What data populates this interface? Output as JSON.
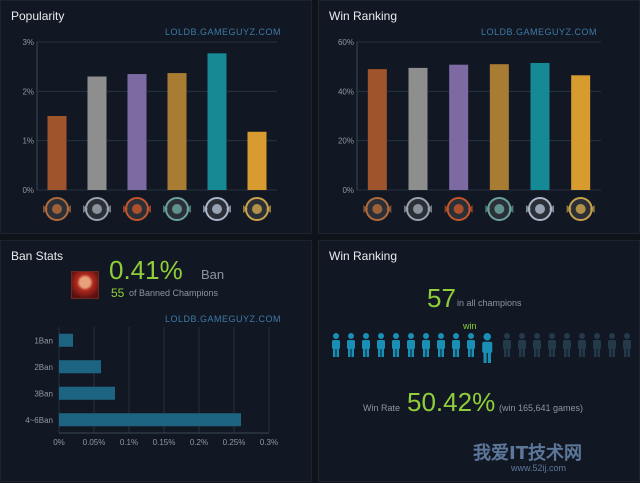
{
  "colors": {
    "bronze": "#a0542c",
    "silver": "#8e8e8e",
    "gold_purple": "#7d6aa3",
    "gold": "#a87c33",
    "platinum": "#158a94",
    "diamond": "#d89b2f",
    "hbar": "#1d6483",
    "green": "#8fce3a",
    "person_active": "#1a8fb5",
    "person_inactive": "#243a4a"
  },
  "popularity": {
    "title": "Popularity",
    "watermark": "LOLDB.GAMEGUYZ.COM"
  },
  "win_ranking_chart": {
    "title": "Win Ranking",
    "watermark": "LOLDB.GAMEGUYZ.COM"
  },
  "tier_badges": [
    "bronze-badge-icon",
    "silver-badge-icon",
    "gold-badge-icon",
    "platinum-badge-icon",
    "diamond-badge-icon",
    "challenger-badge-icon"
  ],
  "ban_stats": {
    "title": "Ban Stats",
    "ban_rate": "0.41%",
    "ban_label": "Ban",
    "banned_rank": "55",
    "banned_text": "of Banned Champions",
    "watermark": "LOLDB.GAMEGUYZ.COM"
  },
  "win_summary": {
    "title": "Win Ranking",
    "rank": "57",
    "rank_text": "in all champions",
    "win_word": "win",
    "win_rate_label": "Win Rate",
    "win_rate": "50.42%",
    "games_text": "(win 165,641 games)"
  },
  "people": {
    "total": 20,
    "highlight_index": 10,
    "active_count": 10
  },
  "footer_watermark": {
    "cn": "我爱IT技术网",
    "url": "www.52ij.com"
  },
  "chart_data": [
    {
      "type": "bar",
      "title": "Popularity",
      "y_ticks": [
        "0%",
        "1%",
        "2%",
        "3%"
      ],
      "ylim": [
        0,
        3
      ],
      "values": [
        1.5,
        2.3,
        2.35,
        2.37,
        2.77,
        1.18
      ]
    },
    {
      "type": "bar",
      "title": "Win Ranking",
      "y_ticks": [
        "0%",
        "20%",
        "40%",
        "60%"
      ],
      "ylim": [
        0,
        60
      ],
      "values": [
        49,
        49.5,
        50.8,
        51,
        51.5,
        46.5
      ]
    },
    {
      "type": "bar",
      "orientation": "horizontal",
      "title": "Ban Stats",
      "categories": [
        "1Ban",
        "2Ban",
        "3Ban",
        "4~6Ban"
      ],
      "x_ticks": [
        "0%",
        "0.05%",
        "0.1%",
        "0.15%",
        "0.2%",
        "0.25%",
        "0.3%"
      ],
      "xlim": [
        0,
        0.3
      ],
      "values": [
        0.02,
        0.06,
        0.08,
        0.26
      ]
    }
  ]
}
